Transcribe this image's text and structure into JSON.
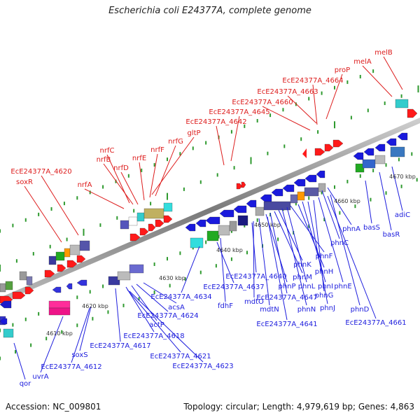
{
  "title": "Escherichia coli E24377A, complete genome",
  "footer": {
    "accession": "Accession: NC_009801",
    "topology": "Topology: circular; Length: 4,979,619 bp; Genes: 4,863"
  },
  "colors": {
    "backbone": "#8a8a8a",
    "tick": "#2f9a2f",
    "top_label": "#dd1c1c",
    "bottom_label": "#1c1cdd",
    "scale_label": "#333333"
  },
  "scale_labels": [
    "4610 kbp",
    "4620 kbp",
    "4630 kbp",
    "4640 kbp",
    "4650 kbp",
    "4660 kbp",
    "4670 kbp"
  ],
  "top_gene_labels": [
    "melB",
    "melA",
    "proP",
    "EcE24377A_4664",
    "EcE24377A_4663",
    "EcE24377A_4660",
    "EcE24377A_4645",
    "EcE24377A_4642",
    "gltP",
    "nrfG",
    "nrfF",
    "nrfE",
    "nrfC",
    "nrfB",
    "nrfD",
    "nrfA",
    "EcE24377A_4620",
    "soxR"
  ],
  "bottom_gene_labels": [
    "adiC",
    "basR",
    "basS",
    "phnA",
    "phnC",
    "phnD",
    "EcE24377A_4661",
    "phnE",
    "phnG",
    "phnJ",
    "phnI",
    "phnH",
    "phnF",
    "phnL",
    "phnN",
    "phnK",
    "phnM",
    "EcE24377A_4647",
    "phnP",
    "EcE24377A_4641",
    "mdtN",
    "mdtO",
    "EcE24377A_4640",
    "fdhF",
    "EcE24377A_4637",
    "EcE24377A_4634",
    "acsA",
    "EcE24377A_4624",
    "actP",
    "EcE24377A_4618",
    "EcE24377A_4617",
    "EcE24377A_4621",
    "EcE24377A_4623",
    "soxS",
    "EcE24377A_4612",
    "uvrA",
    "qor"
  ]
}
